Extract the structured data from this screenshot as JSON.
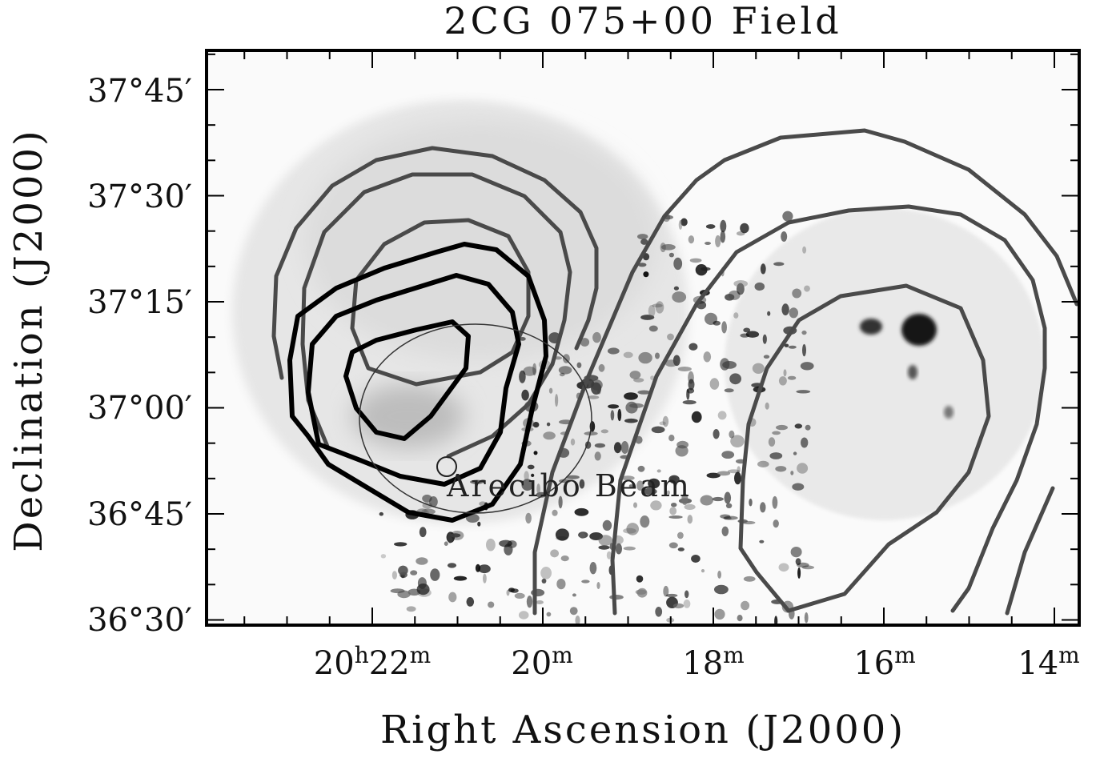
{
  "chart_data": {
    "type": "contour",
    "title": "2CG 075+00 Field",
    "xlabel": "Right Ascension (J2000)",
    "ylabel": "Declination (J2000)",
    "x_ticks": [
      {
        "h": "20",
        "m": "22",
        "label_hour": "20",
        "label_h": "h",
        "label_min": "22",
        "label_m": "m",
        "ra_min": 22
      },
      {
        "label_min": "20",
        "label_m": "m",
        "ra_min": 20
      },
      {
        "label_min": "18",
        "label_m": "m",
        "ra_min": 18
      },
      {
        "label_min": "16",
        "label_m": "m",
        "ra_min": 16
      },
      {
        "label_min": "14",
        "label_m": "m",
        "ra_min": 14
      }
    ],
    "y_ticks": [
      {
        "label": "37°45′",
        "dec_arcmin": 105
      },
      {
        "label": "37°30′",
        "dec_arcmin": 90
      },
      {
        "label": "37°15′",
        "dec_arcmin": 75
      },
      {
        "label": "37°00′",
        "dec_arcmin": 60
      },
      {
        "label": "36°45′",
        "dec_arcmin": 45
      },
      {
        "label": "36°30′",
        "dec_arcmin": 30
      }
    ],
    "annotations": [
      {
        "text": "Arecibo Beam"
      }
    ],
    "grid": false,
    "background": "greyscale image",
    "contour_colors": {
      "thick": "#000000",
      "thin": "#4a4a4a"
    }
  }
}
